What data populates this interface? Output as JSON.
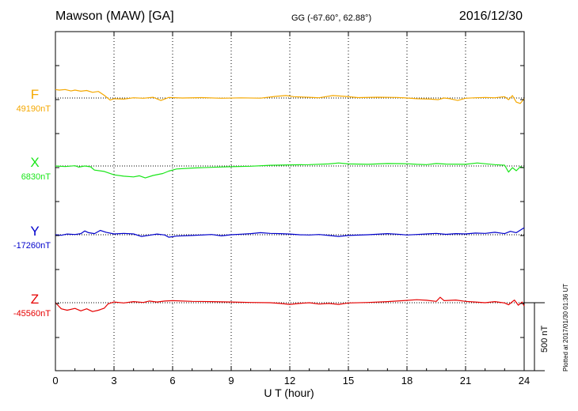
{
  "header": {
    "station": "Mawson (MAW)  [GA]",
    "coords": "GG (-67.60°,  62.88°)",
    "date": "2016/12/30"
  },
  "footer": {
    "plotted": "Plotted at 2017/01/30 01:36 UT"
  },
  "colors": {
    "F": "#f5a800",
    "X": "#19e619",
    "Y": "#0000cc",
    "Z": "#e60000"
  },
  "chart_data": {
    "type": "line",
    "xlabel": "U T (hour)",
    "xlim": [
      0,
      24
    ],
    "xticks": [
      "0",
      "3",
      "6",
      "9",
      "12",
      "15",
      "18",
      "21",
      "24"
    ],
    "ylabel": "",
    "scale_bar": {
      "label": "500 nT",
      "value_nT": 500
    },
    "series": [
      {
        "name": "F",
        "baseline": "49190nT",
        "baseline_nT": 49190,
        "points": [
          [
            0,
            62
          ],
          [
            0.2,
            58
          ],
          [
            0.5,
            62
          ],
          [
            0.8,
            52
          ],
          [
            1,
            58
          ],
          [
            1.3,
            50
          ],
          [
            1.6,
            55
          ],
          [
            1.9,
            42
          ],
          [
            2.2,
            48
          ],
          [
            2.5,
            20
          ],
          [
            2.8,
            -15
          ],
          [
            3,
            -5
          ],
          [
            3.5,
            -8
          ],
          [
            4,
            2
          ],
          [
            4.5,
            -2
          ],
          [
            5,
            5
          ],
          [
            5.4,
            -18
          ],
          [
            5.8,
            4
          ],
          [
            6.5,
            0
          ],
          [
            7.5,
            3
          ],
          [
            8.5,
            -2
          ],
          [
            9.5,
            1
          ],
          [
            10.5,
            -1
          ],
          [
            11.3,
            12
          ],
          [
            11.8,
            18
          ],
          [
            12.2,
            10
          ],
          [
            13,
            5
          ],
          [
            13.5,
            2
          ],
          [
            14.2,
            18
          ],
          [
            14.8,
            12
          ],
          [
            15.5,
            3
          ],
          [
            16.5,
            6
          ],
          [
            17.5,
            4
          ],
          [
            18,
            0
          ],
          [
            18.5,
            -5
          ],
          [
            19.2,
            -8
          ],
          [
            19.6,
            -12
          ],
          [
            19.9,
            0
          ],
          [
            20.2,
            -5
          ],
          [
            20.6,
            -18
          ],
          [
            21,
            -2
          ],
          [
            21.5,
            2
          ],
          [
            22,
            4
          ],
          [
            22.5,
            2
          ],
          [
            23,
            10
          ],
          [
            23.2,
            -12
          ],
          [
            23.4,
            18
          ],
          [
            23.6,
            -30
          ],
          [
            23.8,
            -40
          ],
          [
            24,
            -5
          ]
        ]
      },
      {
        "name": "X",
        "baseline": "6830nT",
        "baseline_nT": 6830,
        "points": [
          [
            0,
            0
          ],
          [
            0.5,
            -4
          ],
          [
            1,
            2
          ],
          [
            1.2,
            -8
          ],
          [
            1.5,
            0
          ],
          [
            1.8,
            -6
          ],
          [
            2,
            -30
          ],
          [
            2.5,
            -40
          ],
          [
            3,
            -65
          ],
          [
            3.5,
            -75
          ],
          [
            4,
            -80
          ],
          [
            4.3,
            -72
          ],
          [
            4.6,
            -88
          ],
          [
            5,
            -70
          ],
          [
            5.5,
            -55
          ],
          [
            5.8,
            -38
          ],
          [
            6.2,
            -22
          ],
          [
            7,
            -15
          ],
          [
            8,
            -10
          ],
          [
            9,
            -5
          ],
          [
            10,
            -2
          ],
          [
            11,
            5
          ],
          [
            12,
            8
          ],
          [
            13,
            10
          ],
          [
            14,
            15
          ],
          [
            14.5,
            22
          ],
          [
            15,
            15
          ],
          [
            16,
            12
          ],
          [
            17,
            18
          ],
          [
            18,
            16
          ],
          [
            18.5,
            12
          ],
          [
            19,
            10
          ],
          [
            19.5,
            18
          ],
          [
            20,
            14
          ],
          [
            21,
            12
          ],
          [
            21.6,
            22
          ],
          [
            22,
            16
          ],
          [
            22.5,
            10
          ],
          [
            23,
            6
          ],
          [
            23.2,
            -45
          ],
          [
            23.4,
            -12
          ],
          [
            23.6,
            -35
          ],
          [
            23.8,
            -5
          ],
          [
            24,
            -15
          ]
        ]
      },
      {
        "name": "Y",
        "baseline": "-17260nT",
        "baseline_nT": -17260,
        "points": [
          [
            0,
            0
          ],
          [
            0.3,
            -4
          ],
          [
            0.6,
            5
          ],
          [
            1,
            2
          ],
          [
            1.3,
            8
          ],
          [
            1.5,
            28
          ],
          [
            1.7,
            15
          ],
          [
            2,
            8
          ],
          [
            2.3,
            32
          ],
          [
            2.6,
            18
          ],
          [
            3,
            6
          ],
          [
            3.5,
            10
          ],
          [
            4,
            6
          ],
          [
            4.4,
            -12
          ],
          [
            4.8,
            -4
          ],
          [
            5.2,
            5
          ],
          [
            5.6,
            -2
          ],
          [
            5.8,
            -18
          ],
          [
            6.2,
            -10
          ],
          [
            7,
            -5
          ],
          [
            8,
            2
          ],
          [
            8.5,
            -8
          ],
          [
            9,
            0
          ],
          [
            9.5,
            4
          ],
          [
            10,
            8
          ],
          [
            10.5,
            15
          ],
          [
            11,
            10
          ],
          [
            11.5,
            8
          ],
          [
            12,
            5
          ],
          [
            12.5,
            0
          ],
          [
            13,
            -2
          ],
          [
            13.5,
            2
          ],
          [
            14,
            -5
          ],
          [
            14.5,
            -12
          ],
          [
            15,
            -5
          ],
          [
            16,
            0
          ],
          [
            17,
            8
          ],
          [
            17.5,
            4
          ],
          [
            18,
            -2
          ],
          [
            18.5,
            2
          ],
          [
            19,
            6
          ],
          [
            19.5,
            10
          ],
          [
            20,
            3
          ],
          [
            20.5,
            8
          ],
          [
            21,
            6
          ],
          [
            21.5,
            12
          ],
          [
            22,
            10
          ],
          [
            22.5,
            18
          ],
          [
            23,
            8
          ],
          [
            23.3,
            25
          ],
          [
            23.6,
            15
          ],
          [
            24,
            52
          ]
        ]
      },
      {
        "name": "Z",
        "baseline": "-45560nT",
        "baseline_nT": -45560,
        "points": [
          [
            0,
            0
          ],
          [
            0.3,
            -45
          ],
          [
            0.6,
            -55
          ],
          [
            1,
            -42
          ],
          [
            1.3,
            -60
          ],
          [
            1.6,
            -45
          ],
          [
            1.9,
            -65
          ],
          [
            2.2,
            -55
          ],
          [
            2.5,
            -40
          ],
          [
            2.7,
            -8
          ],
          [
            3,
            5
          ],
          [
            3.5,
            -2
          ],
          [
            4,
            8
          ],
          [
            4.5,
            2
          ],
          [
            4.8,
            12
          ],
          [
            5.2,
            5
          ],
          [
            5.6,
            12
          ],
          [
            6,
            15
          ],
          [
            7,
            10
          ],
          [
            8,
            8
          ],
          [
            9,
            5
          ],
          [
            10,
            2
          ],
          [
            11,
            0
          ],
          [
            11.5,
            -5
          ],
          [
            12,
            -12
          ],
          [
            12.5,
            -5
          ],
          [
            13,
            0
          ],
          [
            13.5,
            -10
          ],
          [
            14,
            -5
          ],
          [
            14.5,
            -12
          ],
          [
            15,
            -2
          ],
          [
            16,
            2
          ],
          [
            17,
            8
          ],
          [
            17.8,
            15
          ],
          [
            18.5,
            22
          ],
          [
            19,
            18
          ],
          [
            19.5,
            10
          ],
          [
            19.7,
            40
          ],
          [
            19.9,
            15
          ],
          [
            20.5,
            20
          ],
          [
            21,
            10
          ],
          [
            21.5,
            5
          ],
          [
            22,
            0
          ],
          [
            22.5,
            8
          ],
          [
            23,
            -2
          ],
          [
            23.2,
            -15
          ],
          [
            23.5,
            20
          ],
          [
            23.7,
            -18
          ],
          [
            23.9,
            5
          ],
          [
            24,
            -25
          ]
        ]
      }
    ]
  }
}
